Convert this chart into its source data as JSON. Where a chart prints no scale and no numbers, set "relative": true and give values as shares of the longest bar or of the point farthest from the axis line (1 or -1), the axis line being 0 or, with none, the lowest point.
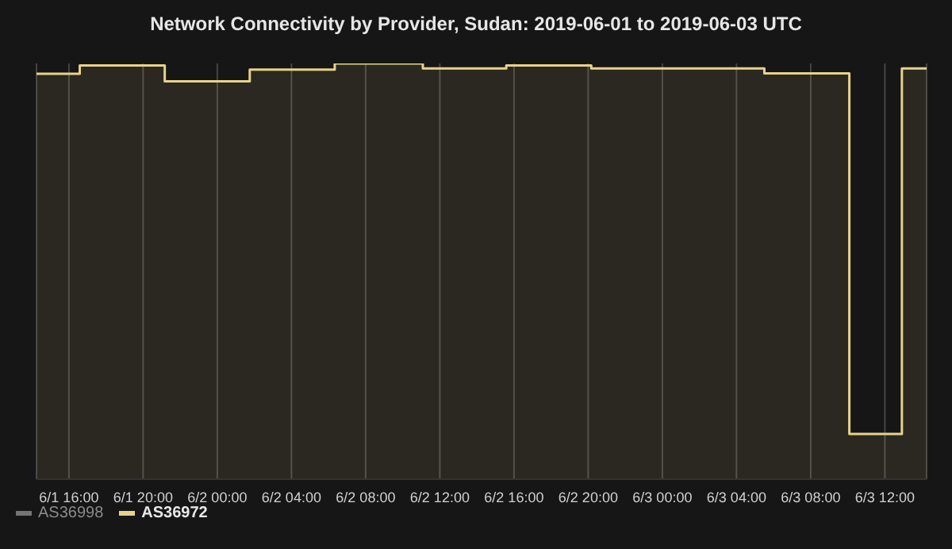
{
  "chart_data": {
    "type": "area",
    "title": "Network Connectivity by Provider, Sudan: 2019-06-01 to 2019-06-03 UTC",
    "relative": true,
    "x": [
      "2019-06-01T14:15",
      "2019-06-01T16:35",
      "2019-06-01T16:35",
      "2019-06-01T21:10",
      "2019-06-01T21:10",
      "2019-06-02T01:45",
      "2019-06-02T01:45",
      "2019-06-02T06:20",
      "2019-06-02T06:20",
      "2019-06-02T11:05",
      "2019-06-02T11:05",
      "2019-06-02T15:35",
      "2019-06-02T15:35",
      "2019-06-02T20:10",
      "2019-06-02T20:10",
      "2019-06-03T05:30",
      "2019-06-03T05:30",
      "2019-06-03T10:05",
      "2019-06-03T10:05",
      "2019-06-03T12:55",
      "2019-06-03T12:55",
      "2019-06-03T14:15"
    ],
    "series": [
      {
        "name": "AS36998",
        "color": "#b4b4b4",
        "values": [
          null,
          null,
          null,
          null,
          null,
          null,
          null,
          null,
          null,
          null,
          null,
          null,
          null,
          null,
          null,
          null,
          null,
          null,
          null,
          null,
          null,
          null
        ]
      },
      {
        "name": "AS36972",
        "color": "#e8d28a",
        "values": [
          0.975,
          0.975,
          0.995,
          0.995,
          0.957,
          0.957,
          0.985,
          0.985,
          1,
          1,
          0.988,
          0.988,
          0.995,
          0.995,
          0.988,
          0.988,
          0.976,
          0.976,
          0.109,
          0.109,
          0.988,
          0.988
        ]
      }
    ],
    "xlim": [
      "2019-06-01T14:15",
      "2019-06-03T14:15"
    ],
    "xticks": [
      {
        "value": "2019-06-01T16:00",
        "label": "6/1 16:00"
      },
      {
        "value": "2019-06-01T20:00",
        "label": "6/1 20:00"
      },
      {
        "value": "2019-06-02T00:00",
        "label": "6/2 00:00"
      },
      {
        "value": "2019-06-02T04:00",
        "label": "6/2 04:00"
      },
      {
        "value": "2019-06-02T08:00",
        "label": "6/2 08:00"
      },
      {
        "value": "2019-06-02T12:00",
        "label": "6/2 12:00"
      },
      {
        "value": "2019-06-02T16:00",
        "label": "6/2 16:00"
      },
      {
        "value": "2019-06-02T20:00",
        "label": "6/2 20:00"
      },
      {
        "value": "2019-06-03T00:00",
        "label": "6/3 00:00"
      },
      {
        "value": "2019-06-03T04:00",
        "label": "6/3 04:00"
      },
      {
        "value": "2019-06-03T08:00",
        "label": "6/3 08:00"
      },
      {
        "value": "2019-06-03T12:00",
        "label": "6/3 12:00"
      }
    ],
    "grid": "x",
    "legend": "bottom left",
    "tick_labels": "x"
  }
}
